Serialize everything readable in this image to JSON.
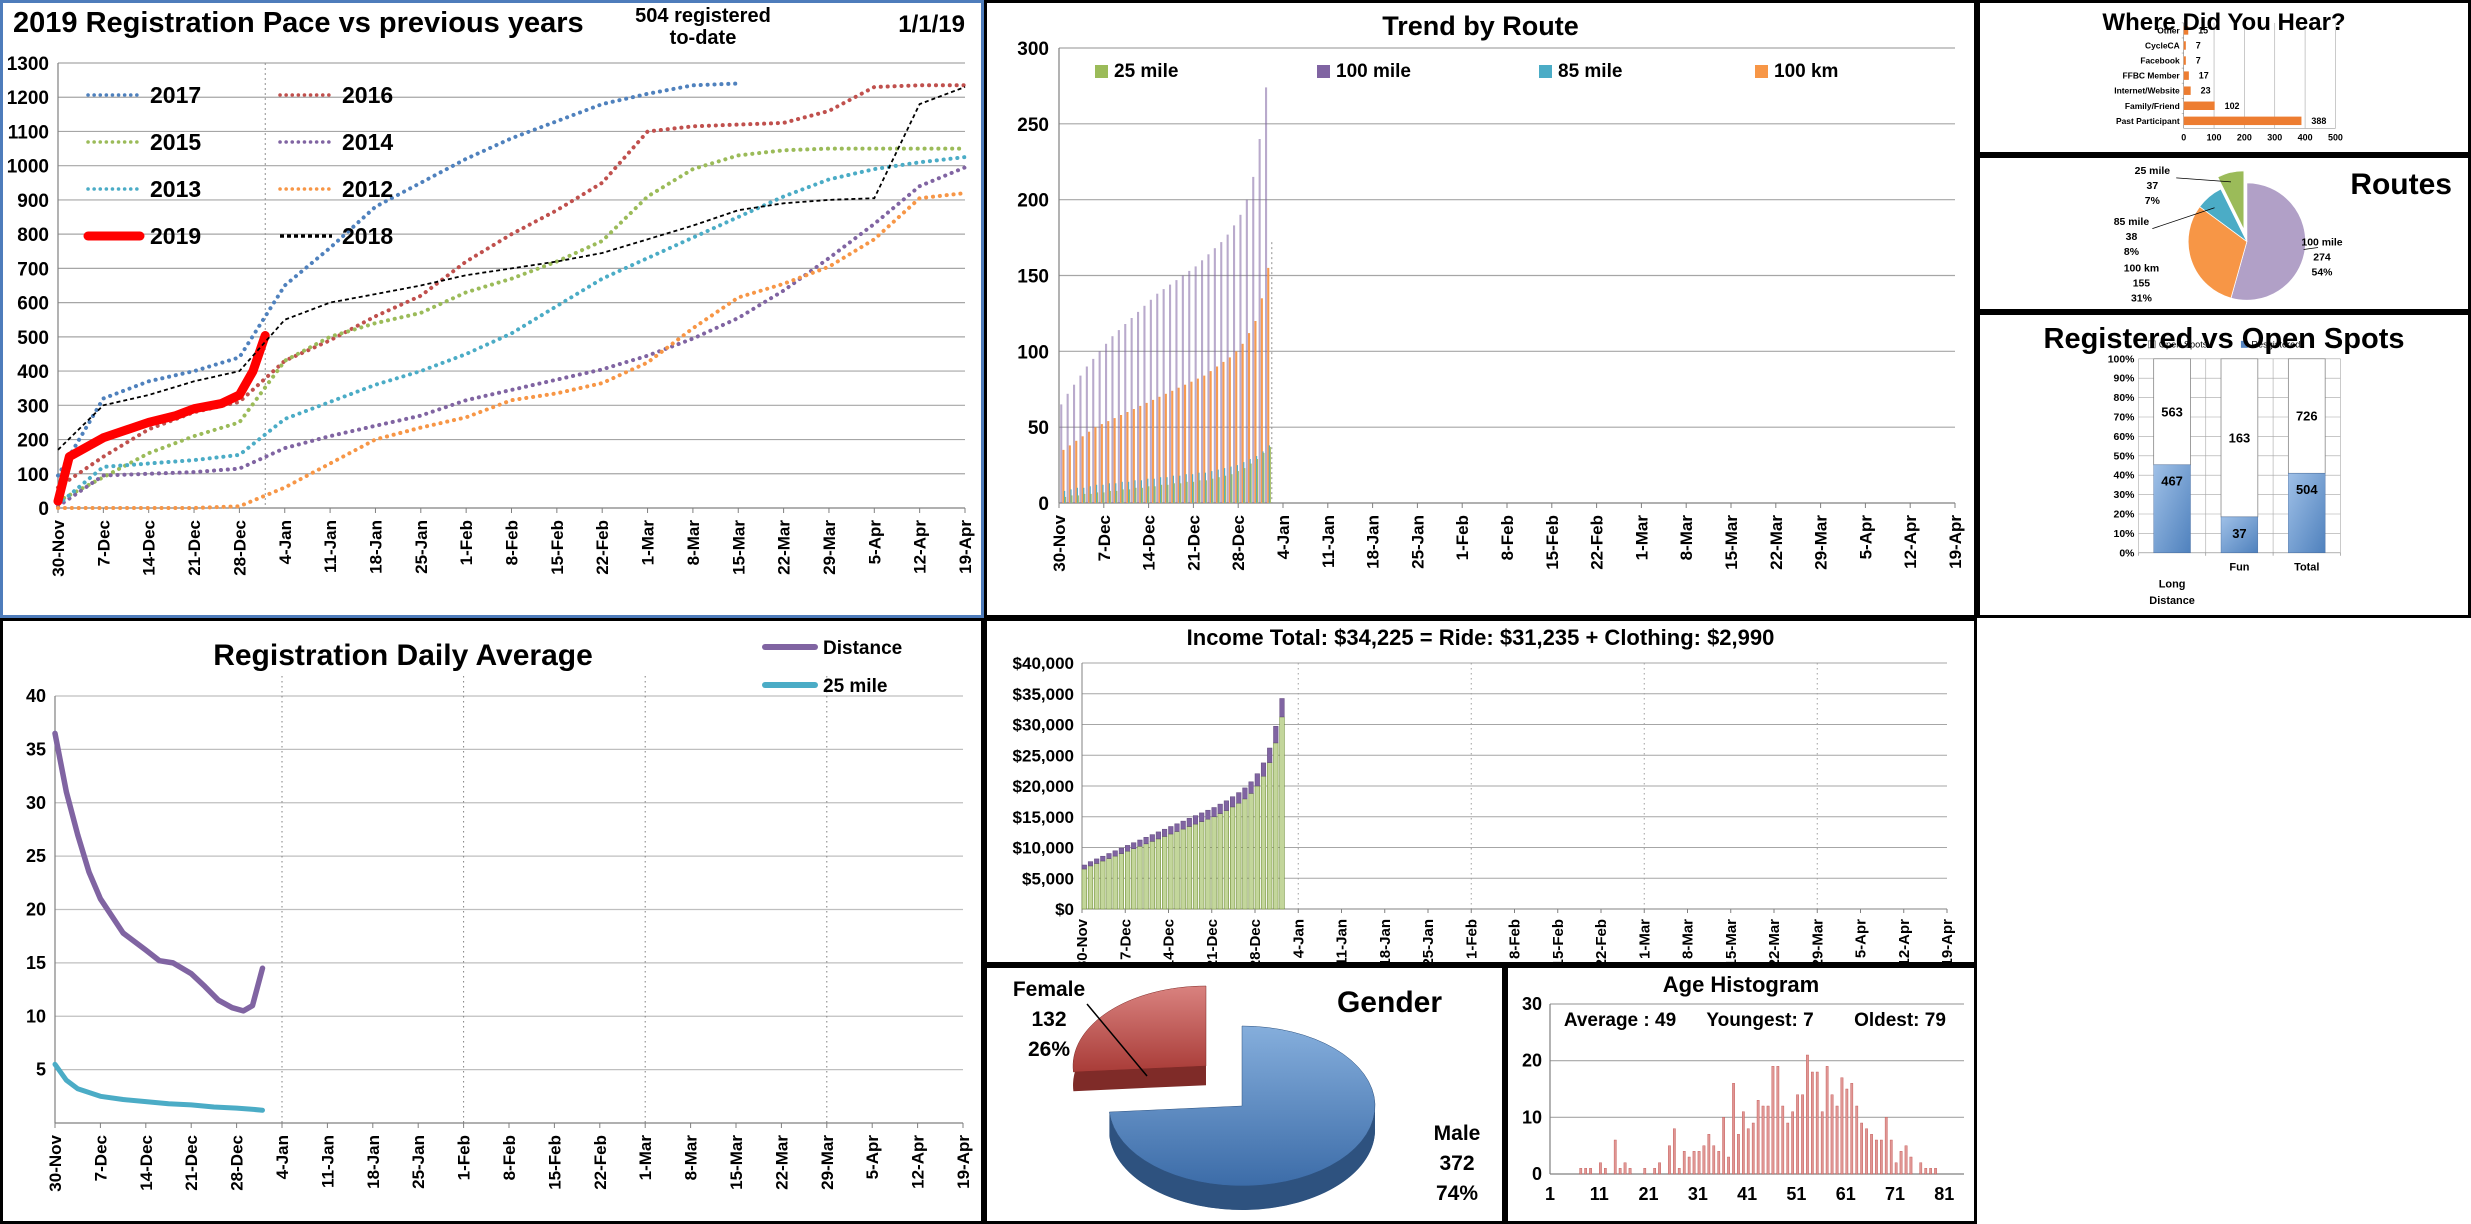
{
  "dates": [
    "30-Nov",
    "7-Dec",
    "14-Dec",
    "21-Dec",
    "28-Dec",
    "4-Jan",
    "11-Jan",
    "18-Jan",
    "25-Jan",
    "1-Feb",
    "8-Feb",
    "15-Feb",
    "22-Feb",
    "1-Mar",
    "8-Mar",
    "15-Mar",
    "22-Mar",
    "29-Mar",
    "5-Apr",
    "12-Apr",
    "19-Apr"
  ],
  "chart_data": [
    {
      "id": "pace",
      "type": "line",
      "title": "2019 Registration Pace vs previous years",
      "note_line1": "504 registered",
      "note_line2": "to-date",
      "as_of": "1/1/19",
      "ylim": [
        0,
        1300
      ],
      "ytick": 100,
      "cutoff_x": 4.57,
      "series": [
        {
          "name": "2017",
          "color": "#4F81BD",
          "style": "dot",
          "width": 4,
          "values": [
            95,
            320,
            370,
            400,
            440,
            650,
            760,
            880,
            950,
            1020,
            1080,
            1130,
            1180,
            1210,
            1235,
            1240,
            null,
            null,
            null,
            null,
            null
          ]
        },
        {
          "name": "2016",
          "color": "#C0504D",
          "style": "dot",
          "width": 4,
          "values": [
            60,
            150,
            230,
            280,
            310,
            430,
            490,
            560,
            620,
            720,
            800,
            870,
            950,
            1100,
            1115,
            1120,
            1125,
            1160,
            1230,
            1235,
            1235
          ]
        },
        {
          "name": "2015",
          "color": "#9BBB59",
          "style": "dot",
          "width": 4,
          "values": [
            20,
            90,
            160,
            210,
            250,
            430,
            500,
            540,
            570,
            630,
            670,
            720,
            780,
            910,
            990,
            1030,
            1045,
            1050,
            1050,
            1050,
            1050
          ]
        },
        {
          "name": "2014",
          "color": "#8064A2",
          "style": "dot",
          "width": 4,
          "values": [
            5,
            95,
            100,
            105,
            115,
            175,
            210,
            240,
            270,
            315,
            345,
            375,
            405,
            445,
            495,
            555,
            635,
            730,
            830,
            940,
            995
          ]
        },
        {
          "name": "2013",
          "color": "#4BACC6",
          "style": "dot",
          "width": 4,
          "values": [
            10,
            120,
            130,
            140,
            155,
            260,
            310,
            360,
            400,
            450,
            510,
            590,
            670,
            730,
            790,
            850,
            910,
            960,
            990,
            1010,
            1025
          ]
        },
        {
          "name": "2012",
          "color": "#F79646",
          "style": "dot",
          "width": 4,
          "values": [
            0,
            0,
            0,
            0,
            5,
            60,
            130,
            200,
            235,
            265,
            315,
            335,
            365,
            425,
            525,
            615,
            655,
            705,
            785,
            905,
            920
          ]
        },
        {
          "name": "2019",
          "color": "#FF0000",
          "style": "solid",
          "width": 9,
          "points": [
            [
              0,
              20
            ],
            [
              0.25,
              150
            ],
            [
              1,
              205
            ],
            [
              2,
              250
            ],
            [
              2.6,
              270
            ],
            [
              3,
              290
            ],
            [
              3.6,
              305
            ],
            [
              4,
              330
            ],
            [
              4.3,
              400
            ],
            [
              4.57,
              504
            ]
          ]
        },
        {
          "name": "2018",
          "color": "#000000",
          "style": "dash",
          "width": 1.8,
          "values": [
            170,
            300,
            330,
            370,
            400,
            550,
            600,
            625,
            650,
            680,
            700,
            720,
            745,
            785,
            825,
            870,
            890,
            900,
            905,
            1180,
            1230
          ]
        }
      ]
    },
    {
      "id": "trend",
      "type": "bar",
      "title": "Trend by Route",
      "ylim": [
        0,
        300
      ],
      "ytick": 50,
      "cutoff_x": 4.75,
      "cutoff_value": 172,
      "series": [
        {
          "name": "25 mile",
          "color": "#9BBB59",
          "values": [
            4,
            5,
            5,
            6,
            6,
            7,
            7,
            8,
            8,
            9,
            9,
            10,
            10,
            11,
            11,
            12,
            12,
            13,
            13,
            14,
            14,
            15,
            15,
            16,
            17,
            18,
            19,
            21,
            23,
            26,
            29,
            33,
            37
          ]
        },
        {
          "name": "100 mile",
          "color": "#8064A2",
          "values": [
            65,
            72,
            78,
            84,
            90,
            95,
            100,
            105,
            110,
            114,
            118,
            122,
            126,
            130,
            134,
            138,
            141,
            144,
            147,
            150,
            153,
            156,
            160,
            164,
            168,
            172,
            177,
            183,
            190,
            200,
            215,
            240,
            274
          ]
        },
        {
          "name": "85 mile",
          "color": "#4BACC6",
          "values": [
            8,
            9,
            10,
            10,
            11,
            12,
            12,
            13,
            13,
            14,
            14,
            15,
            15,
            16,
            16,
            17,
            17,
            18,
            18,
            19,
            19,
            20,
            20,
            21,
            22,
            23,
            24,
            25,
            27,
            29,
            31,
            34,
            38
          ]
        },
        {
          "name": "100 km",
          "color": "#F79646",
          "values": [
            35,
            38,
            41,
            44,
            47,
            50,
            52,
            54,
            56,
            58,
            60,
            62,
            64,
            66,
            68,
            70,
            72,
            74,
            76,
            78,
            80,
            82,
            84,
            87,
            90,
            93,
            96,
            100,
            105,
            112,
            120,
            135,
            155
          ]
        }
      ]
    },
    {
      "id": "hear",
      "type": "bar-horizontal",
      "title": "Where Did You Hear?",
      "categories": [
        "Other",
        "CycleCA",
        "Facebook",
        "FFBC Member",
        "Internet/Website",
        "Family/Friend",
        "Past Participant"
      ],
      "values": [
        15,
        7,
        7,
        17,
        23,
        102,
        388
      ],
      "xlim": [
        0,
        500
      ],
      "xtick": 100,
      "bar_color": "#ED7D31"
    },
    {
      "id": "routes",
      "type": "pie",
      "title": "Routes",
      "slices": [
        {
          "name": "100 mile",
          "value": 274,
          "pct": "54%",
          "color": "#B1A0C7",
          "exploded": false
        },
        {
          "name": "100 km",
          "value": 155,
          "pct": "31%",
          "color": "#F79646",
          "exploded": false
        },
        {
          "name": "85 mile",
          "value": 38,
          "pct": "8%",
          "color": "#4BACC6",
          "exploded": false
        },
        {
          "name": "25 mile",
          "value": 37,
          "pct": "7%",
          "color": "#9BBB59",
          "exploded": true
        }
      ]
    },
    {
      "id": "daily",
      "type": "line",
      "title": "Registration Daily Average",
      "ylim": [
        0,
        40
      ],
      "ytick": 5,
      "dotted_grid_ticks": [
        5,
        9,
        13,
        17
      ],
      "series": [
        {
          "name": "Distance",
          "color": "#8064A2",
          "style": "solid",
          "width": 5.5,
          "points": [
            [
              0,
              36.5
            ],
            [
              0.25,
              31
            ],
            [
              0.5,
              27
            ],
            [
              0.75,
              23.5
            ],
            [
              1,
              21
            ],
            [
              1.5,
              17.8
            ],
            [
              2,
              16.2
            ],
            [
              2.3,
              15.2
            ],
            [
              2.6,
              15
            ],
            [
              3,
              14
            ],
            [
              3.3,
              12.8
            ],
            [
              3.6,
              11.5
            ],
            [
              3.9,
              10.8
            ],
            [
              4.15,
              10.5
            ],
            [
              4.35,
              11
            ],
            [
              4.57,
              14.5
            ]
          ]
        },
        {
          "name": "25 mile",
          "color": "#4BACC6",
          "style": "solid",
          "width": 5,
          "points": [
            [
              0,
              5.5
            ],
            [
              0.25,
              4
            ],
            [
              0.5,
              3.2
            ],
            [
              1,
              2.5
            ],
            [
              1.5,
              2.2
            ],
            [
              2,
              2
            ],
            [
              2.5,
              1.8
            ],
            [
              3,
              1.7
            ],
            [
              3.5,
              1.5
            ],
            [
              4,
              1.4
            ],
            [
              4.3,
              1.3
            ],
            [
              4.57,
              1.2
            ]
          ]
        }
      ]
    },
    {
      "id": "income",
      "type": "stacked-bar",
      "title": "Income Total: $34,225  =  Ride: $31,235 +  Clothing: $2,990",
      "ylim": [
        0,
        40000
      ],
      "ytick": 5000,
      "dotted_grid_ticks": [
        5,
        9,
        13,
        17
      ],
      "series": [
        {
          "name": "Ride",
          "color": "#C3D69B",
          "edge": "#76923C",
          "values": [
            6500,
            7000,
            7400,
            7800,
            8200,
            8600,
            9000,
            9400,
            9800,
            10200,
            10600,
            11000,
            11400,
            11800,
            12200,
            12600,
            13000,
            13400,
            13800,
            14200,
            14600,
            15000,
            15500,
            16000,
            16600,
            17200,
            17900,
            18800,
            20000,
            21600,
            23800,
            27000,
            31235
          ]
        },
        {
          "name": "Clothing",
          "color": "#8064A2",
          "edge": "#60497A",
          "values": [
            650,
            700,
            740,
            780,
            820,
            860,
            900,
            940,
            980,
            1020,
            1060,
            1100,
            1140,
            1180,
            1220,
            1260,
            1300,
            1340,
            1380,
            1420,
            1460,
            1500,
            1550,
            1600,
            1660,
            1720,
            1790,
            1880,
            2000,
            2160,
            2380,
            2700,
            2990
          ]
        }
      ]
    },
    {
      "id": "gender",
      "type": "pie3d",
      "title": "Gender",
      "slices": [
        {
          "name": "Male",
          "value": 372,
          "pct": "74%",
          "color": "#4F81BD",
          "exploded": false
        },
        {
          "name": "Female",
          "value": 132,
          "pct": "26%",
          "color": "#C0504D",
          "exploded": true
        }
      ]
    },
    {
      "id": "age",
      "type": "histogram",
      "title": "Age Histogram",
      "stats": {
        "average": "Average : 49",
        "youngest": "Youngest: 7",
        "oldest": "Oldest: 79"
      },
      "ylim": [
        0,
        30
      ],
      "ytick": 10,
      "x_ticks": [
        1,
        11,
        21,
        31,
        41,
        51,
        61,
        71,
        81
      ],
      "bar_color": "#E09694",
      "bar_edge": "#C0504D",
      "bars": [
        [
          7,
          1
        ],
        [
          8,
          1
        ],
        [
          9,
          1
        ],
        [
          11,
          2
        ],
        [
          12,
          1
        ],
        [
          14,
          6
        ],
        [
          15,
          1
        ],
        [
          16,
          2
        ],
        [
          17,
          1
        ],
        [
          20,
          1
        ],
        [
          22,
          1
        ],
        [
          23,
          2
        ],
        [
          25,
          5
        ],
        [
          26,
          8
        ],
        [
          27,
          1
        ],
        [
          28,
          4
        ],
        [
          29,
          3
        ],
        [
          30,
          4
        ],
        [
          31,
          4
        ],
        [
          32,
          5
        ],
        [
          33,
          7
        ],
        [
          34,
          5
        ],
        [
          35,
          4
        ],
        [
          36,
          10
        ],
        [
          37,
          3
        ],
        [
          38,
          16
        ],
        [
          39,
          7
        ],
        [
          40,
          11
        ],
        [
          41,
          8
        ],
        [
          42,
          9
        ],
        [
          43,
          13
        ],
        [
          44,
          12
        ],
        [
          45,
          12
        ],
        [
          46,
          19
        ],
        [
          47,
          19
        ],
        [
          48,
          12
        ],
        [
          49,
          9
        ],
        [
          50,
          11
        ],
        [
          51,
          14
        ],
        [
          52,
          14
        ],
        [
          53,
          21
        ],
        [
          54,
          18
        ],
        [
          55,
          18
        ],
        [
          56,
          11
        ],
        [
          57,
          19
        ],
        [
          58,
          14
        ],
        [
          59,
          12
        ],
        [
          60,
          17
        ],
        [
          61,
          15
        ],
        [
          62,
          16
        ],
        [
          63,
          12
        ],
        [
          64,
          9
        ],
        [
          65,
          8
        ],
        [
          66,
          7
        ],
        [
          67,
          6
        ],
        [
          68,
          6
        ],
        [
          69,
          10
        ],
        [
          70,
          6
        ],
        [
          71,
          2
        ],
        [
          72,
          4
        ],
        [
          73,
          5
        ],
        [
          74,
          3
        ],
        [
          76,
          2
        ],
        [
          77,
          1
        ],
        [
          78,
          1
        ],
        [
          79,
          1
        ]
      ]
    },
    {
      "id": "spots",
      "type": "stacked-column",
      "title": "Registered vs Open Spots",
      "legend": [
        "Open Spots",
        "Resgistered"
      ],
      "categories": [
        "Long Distance",
        "Fun",
        "Total"
      ],
      "open": [
        563,
        163,
        726
      ],
      "registered": [
        467,
        37,
        504
      ],
      "ytick_labels": [
        "0%",
        "10%",
        "20%",
        "30%",
        "40%",
        "50%",
        "60%",
        "70%",
        "80%",
        "90%",
        "100%"
      ],
      "registered_color_top": "#9FC0E7",
      "registered_color_bottom": "#4F81BD",
      "open_color": "#FFFFFF"
    }
  ]
}
